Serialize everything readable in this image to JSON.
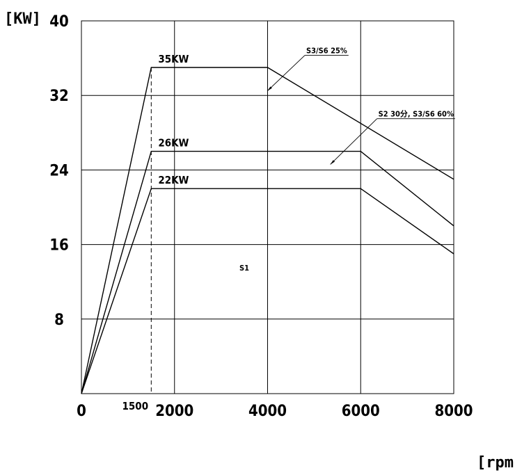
{
  "chart_data": {
    "type": "line",
    "title": "",
    "ylabel": "[KW]",
    "xlabel": "[rpm]",
    "xlim": [
      0,
      8000
    ],
    "ylim": [
      0,
      40
    ],
    "grid": true,
    "x_ticks": [
      0,
      2000,
      4000,
      6000,
      8000
    ],
    "y_ticks": [
      8,
      16,
      24,
      32,
      40
    ],
    "extra_x_tick": {
      "value": 1500,
      "label": "1500",
      "dashed_guide": true
    },
    "series": [
      {
        "name": "35KW",
        "x": [
          0,
          1500,
          4000,
          8000
        ],
        "y": [
          0,
          35,
          35,
          23
        ]
      },
      {
        "name": "26KW",
        "x": [
          0,
          1500,
          6000,
          8000
        ],
        "y": [
          0,
          26,
          26,
          18
        ]
      },
      {
        "name": "22KW",
        "x": [
          0,
          1500,
          6000,
          8000
        ],
        "y": [
          0,
          22,
          22,
          15
        ]
      }
    ],
    "annotations": [
      {
        "text": "S3/S6 25%",
        "target_x": 4000,
        "target_y": 32.5,
        "anchor_x": 4800,
        "anchor_y": 36.3
      },
      {
        "text": "S2 30分, S3/S6 60%",
        "target_x": 5350,
        "target_y": 24.6,
        "anchor_x": 6350,
        "anchor_y": 29.5
      },
      {
        "text": "S1",
        "x": 3500,
        "y": 13.2
      }
    ]
  }
}
